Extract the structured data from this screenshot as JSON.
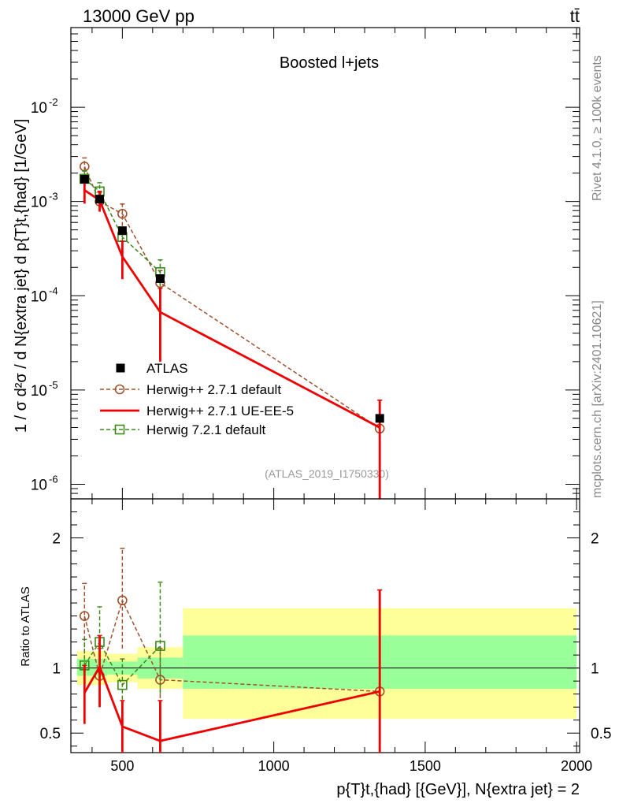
{
  "header": {
    "energy_label": "13000 GeV pp",
    "process_label": "tt̄"
  },
  "side_labels": {
    "rivet": "Rivet 4.1.0, ≥ 100k events",
    "mcplots": "mcplots.cern.ch [arXiv:2401.10621]"
  },
  "chart_data": [
    {
      "type": "line",
      "panel": "main",
      "title": "Boosted l+jets",
      "analysis_label": "(ATLAS_2019_I1750330)",
      "ylabel": "1 / σ d²σ / d N{extra jet} d p{T}t,{had} [1/GeV]",
      "yscale": "log",
      "ylim": [
        7e-07,
        0.07
      ],
      "xlim": [
        330,
        2010
      ],
      "ytick_labels": [
        "10^-6",
        "10^-5",
        "10^-4",
        "10^-3",
        "10^-2"
      ],
      "legend_position": "center-left",
      "series": [
        {
          "name": "ATLAS",
          "style": "black-square-markers",
          "color": "#000000",
          "x": [
            375,
            425,
            500,
            625,
            1350
          ],
          "y": [
            0.00172,
            0.00106,
            0.00049,
            0.000152,
            5e-06
          ]
        },
        {
          "name": "Herwig++ 2.7.1 default",
          "style": "brown-dashed-circles",
          "color": "#a0522d",
          "x": [
            375,
            425,
            500,
            625,
            1350
          ],
          "y": [
            0.00235,
            0.001,
            0.00074,
            0.000137,
            3.9e-06
          ],
          "err_low": [
            0.0018,
            0.00078,
            0.00055,
            9.5e-05,
            1e-07
          ],
          "err_high": [
            0.0029,
            0.00125,
            0.00094,
            0.000185,
            7.8e-06
          ]
        },
        {
          "name": "Herwig++ 2.7.1 UE-EE-5",
          "style": "red-solid-line",
          "color": "#ee0000",
          "x": [
            375,
            425,
            500,
            625,
            1350
          ],
          "y": [
            0.00132,
            0.00103,
            0.00026,
            6.7e-05,
            4e-06
          ],
          "err_low": [
            0.00095,
            0.00078,
            0.00015,
            2e-05,
            1e-07
          ],
          "err_high": [
            0.0017,
            0.00128,
            0.00038,
            0.00012,
            7.8e-06
          ]
        },
        {
          "name": "Herwig 7.2.1 default",
          "style": "green-dashed-squares",
          "color": "#3a8a1a",
          "x": [
            375,
            425,
            500,
            625
          ],
          "y": [
            0.00174,
            0.00128,
            0.00042,
            0.000178
          ],
          "err_low": [
            0.00145,
            0.001,
            0.00032,
            0.000125
          ],
          "err_high": [
            0.0021,
            0.00158,
            0.00052,
            0.00024
          ]
        }
      ]
    },
    {
      "type": "line",
      "panel": "ratio",
      "ylabel": "Ratio to ATLAS",
      "xlabel": "p{T}t,{had} [{GeV}], N{extra jet} = 2",
      "ylim": [
        0.35,
        2.3
      ],
      "xlim": [
        330,
        2010
      ],
      "ytick_labels": [
        "0.5",
        "1",
        "2"
      ],
      "xtick_labels": [
        "500",
        "1000",
        "1500",
        "2000"
      ],
      "bands": {
        "bins": [
          [
            350,
            400
          ],
          [
            400,
            450
          ],
          [
            450,
            550
          ],
          [
            550,
            700
          ],
          [
            700,
            2000
          ]
        ],
        "green": [
          [
            0.94,
            1.07
          ],
          [
            0.94,
            1.07
          ],
          [
            0.95,
            1.05
          ],
          [
            0.92,
            1.08
          ],
          [
            0.84,
            1.25
          ]
        ],
        "yellow": [
          [
            0.87,
            1.13
          ],
          [
            0.87,
            1.13
          ],
          [
            0.89,
            1.11
          ],
          [
            0.84,
            1.16
          ],
          [
            0.61,
            1.46
          ]
        ]
      },
      "series": [
        {
          "name": "Herwig++ 2.7.1 default",
          "color": "#a0522d",
          "x": [
            375,
            425,
            500,
            625,
            1350
          ],
          "y": [
            1.4,
            0.94,
            1.52,
            0.91,
            0.82
          ],
          "err_low": [
            1.07,
            0.7,
            1.15,
            0.72,
            0.0
          ],
          "err_high": [
            1.65,
            1.15,
            1.92,
            1.15,
            1.6
          ]
        },
        {
          "name": "Herwig++ 2.7.1 UE-EE-5",
          "color": "#ee0000",
          "x": [
            375,
            425,
            500,
            625,
            1350
          ],
          "y": [
            0.81,
            1.01,
            0.55,
            0.44,
            0.82
          ],
          "err_low": [
            0.57,
            0.7,
            0.3,
            0.15,
            0.0
          ],
          "err_high": [
            1.02,
            1.25,
            0.75,
            0.75,
            1.6
          ]
        },
        {
          "name": "Herwig 7.2.1 default",
          "color": "#3a8a1a",
          "x": [
            375,
            425,
            500,
            625
          ],
          "y": [
            1.02,
            1.2,
            0.87,
            1.17
          ],
          "err_low": [
            0.82,
            0.93,
            0.66,
            0.8
          ],
          "err_high": [
            1.22,
            1.47,
            1.07,
            1.66
          ]
        }
      ]
    }
  ]
}
